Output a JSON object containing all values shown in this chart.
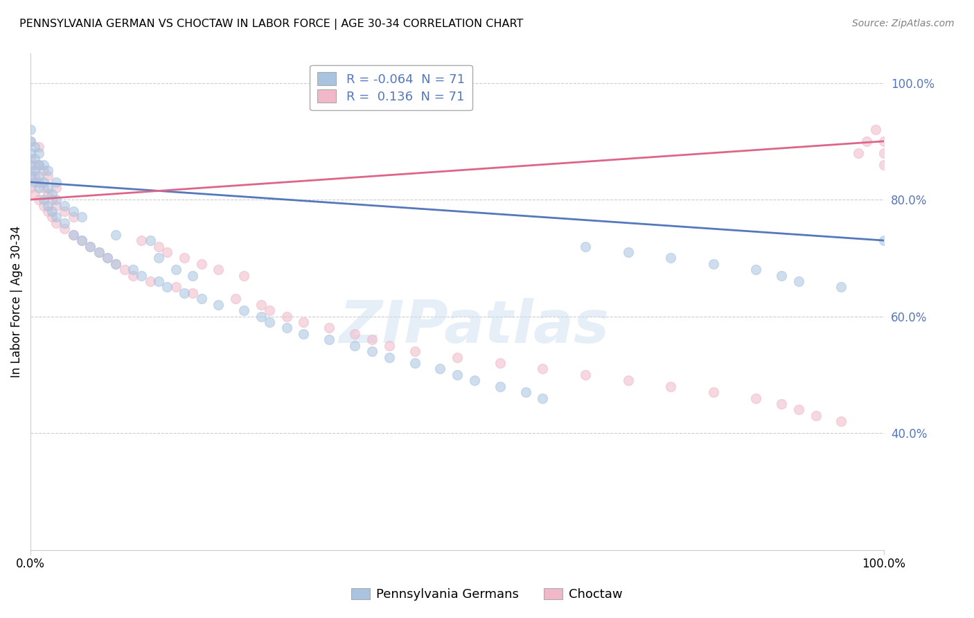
{
  "title": "PENNSYLVANIA GERMAN VS CHOCTAW IN LABOR FORCE | AGE 30-34 CORRELATION CHART",
  "source": "Source: ZipAtlas.com",
  "ylabel": "In Labor Force | Age 30-34",
  "legend_label1": "Pennsylvania Germans",
  "legend_label2": "Choctaw",
  "r_blue": -0.064,
  "r_pink": 0.136,
  "n": 71,
  "blue_color": "#a8c4e0",
  "pink_color": "#f0b8c8",
  "blue_line_color": "#5577bb",
  "pink_line_color": "#dd6688",
  "blue_x": [
    0.0,
    0.0,
    0.0,
    0.0,
    0.0,
    0.005,
    0.005,
    0.005,
    0.005,
    0.01,
    0.01,
    0.01,
    0.01,
    0.015,
    0.015,
    0.015,
    0.02,
    0.02,
    0.02,
    0.025,
    0.025,
    0.03,
    0.03,
    0.03,
    0.04,
    0.04,
    0.05,
    0.05,
    0.06,
    0.06,
    0.07,
    0.08,
    0.09,
    0.1,
    0.1,
    0.12,
    0.13,
    0.14,
    0.15,
    0.15,
    0.16,
    0.17,
    0.18,
    0.19,
    0.2,
    0.22,
    0.25,
    0.27,
    0.28,
    0.3,
    0.32,
    0.35,
    0.38,
    0.4,
    0.42,
    0.45,
    0.48,
    0.5,
    0.52,
    0.55,
    0.58,
    0.6,
    0.65,
    0.7,
    0.75,
    0.8,
    0.85,
    0.88,
    0.9,
    0.95,
    1.0
  ],
  "blue_y": [
    0.84,
    0.86,
    0.88,
    0.9,
    0.92,
    0.83,
    0.85,
    0.87,
    0.89,
    0.82,
    0.84,
    0.86,
    0.88,
    0.8,
    0.83,
    0.86,
    0.79,
    0.82,
    0.85,
    0.78,
    0.81,
    0.77,
    0.8,
    0.83,
    0.76,
    0.79,
    0.74,
    0.78,
    0.73,
    0.77,
    0.72,
    0.71,
    0.7,
    0.69,
    0.74,
    0.68,
    0.67,
    0.73,
    0.66,
    0.7,
    0.65,
    0.68,
    0.64,
    0.67,
    0.63,
    0.62,
    0.61,
    0.6,
    0.59,
    0.58,
    0.57,
    0.56,
    0.55,
    0.54,
    0.53,
    0.52,
    0.51,
    0.5,
    0.49,
    0.48,
    0.47,
    0.46,
    0.72,
    0.71,
    0.7,
    0.69,
    0.68,
    0.67,
    0.66,
    0.65,
    0.73
  ],
  "pink_x": [
    0.0,
    0.0,
    0.0,
    0.0,
    0.005,
    0.005,
    0.005,
    0.01,
    0.01,
    0.01,
    0.01,
    0.015,
    0.015,
    0.015,
    0.02,
    0.02,
    0.02,
    0.025,
    0.025,
    0.03,
    0.03,
    0.03,
    0.04,
    0.04,
    0.05,
    0.05,
    0.06,
    0.07,
    0.08,
    0.09,
    0.1,
    0.11,
    0.12,
    0.13,
    0.14,
    0.15,
    0.16,
    0.17,
    0.18,
    0.19,
    0.2,
    0.22,
    0.24,
    0.25,
    0.27,
    0.28,
    0.3,
    0.32,
    0.35,
    0.38,
    0.4,
    0.42,
    0.45,
    0.5,
    0.55,
    0.6,
    0.65,
    0.7,
    0.75,
    0.8,
    0.85,
    0.88,
    0.9,
    0.92,
    0.95,
    0.97,
    0.98,
    0.99,
    1.0,
    1.0,
    1.0
  ],
  "pink_y": [
    0.82,
    0.85,
    0.87,
    0.9,
    0.81,
    0.84,
    0.86,
    0.8,
    0.83,
    0.86,
    0.89,
    0.79,
    0.82,
    0.85,
    0.78,
    0.81,
    0.84,
    0.77,
    0.8,
    0.76,
    0.79,
    0.82,
    0.75,
    0.78,
    0.74,
    0.77,
    0.73,
    0.72,
    0.71,
    0.7,
    0.69,
    0.68,
    0.67,
    0.73,
    0.66,
    0.72,
    0.71,
    0.65,
    0.7,
    0.64,
    0.69,
    0.68,
    0.63,
    0.67,
    0.62,
    0.61,
    0.6,
    0.59,
    0.58,
    0.57,
    0.56,
    0.55,
    0.54,
    0.53,
    0.52,
    0.51,
    0.5,
    0.49,
    0.48,
    0.47,
    0.46,
    0.45,
    0.44,
    0.43,
    0.42,
    0.88,
    0.9,
    0.92,
    0.86,
    0.88,
    0.9
  ],
  "xlim": [
    0.0,
    1.0
  ],
  "ylim": [
    0.2,
    1.05
  ],
  "yticks": [
    0.4,
    0.6,
    0.8,
    1.0
  ],
  "ytick_labels": [
    "40.0%",
    "60.0%",
    "80.0%",
    "100.0%"
  ],
  "xticks": [
    0.0,
    1.0
  ],
  "xtick_labels": [
    "0.0%",
    "100.0%"
  ],
  "blue_line_start_y": 0.83,
  "blue_line_end_y": 0.73,
  "pink_line_start_y": 0.8,
  "pink_line_end_y": 0.9,
  "watermark_text": "ZIPatlas",
  "title_fontsize": 11.5,
  "source_fontsize": 10,
  "tick_fontsize": 12,
  "legend_fontsize": 13,
  "dot_size": 100,
  "dot_alpha": 0.55,
  "grid_color": "#cccccc",
  "grid_linestyle": "--",
  "spine_color": "#cccccc"
}
